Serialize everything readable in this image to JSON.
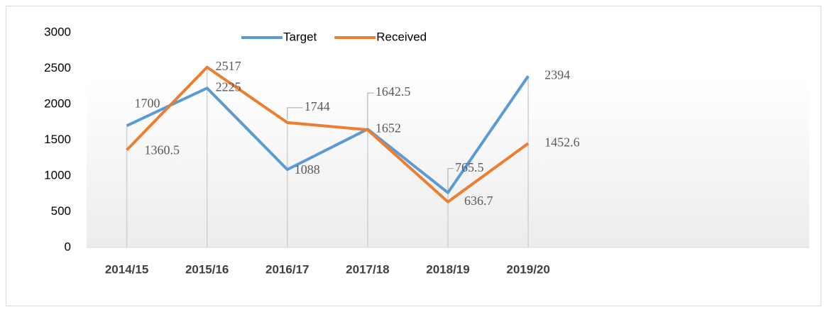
{
  "chart_data": {
    "type": "line",
    "categories": [
      "2014/15",
      "2015/16",
      "2016/17",
      "2017/18",
      "2018/19",
      "2019/20",
      null,
      null,
      null
    ],
    "series": [
      {
        "name": "Target",
        "color": "#5b9bd5",
        "values": [
          1700,
          2225,
          1088,
          1652,
          765.5,
          2394,
          null,
          null,
          null
        ]
      },
      {
        "name": "Received",
        "color": "#ed7d31",
        "values": [
          1360.5,
          2517,
          1744,
          1642.5,
          636.7,
          1452.6,
          null,
          null,
          null
        ]
      }
    ],
    "ylim": [
      0,
      3000
    ],
    "yticks": [
      0,
      500,
      1000,
      1500,
      2000,
      2500,
      3000
    ],
    "legend": "top"
  }
}
